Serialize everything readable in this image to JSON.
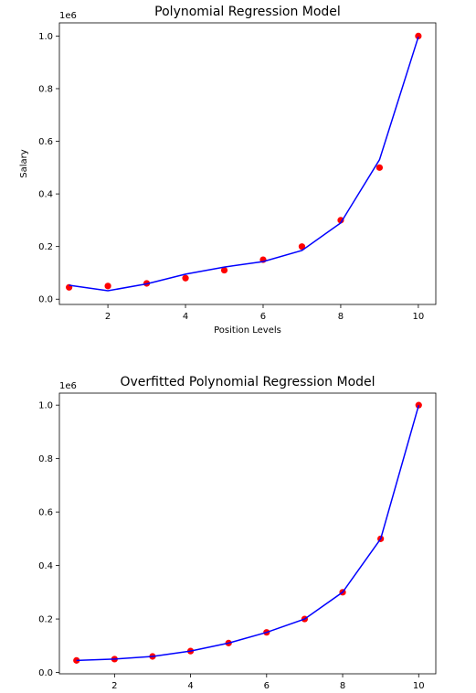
{
  "chart_data": [
    {
      "type": "scatter",
      "title": "Polynomial Regression Model",
      "xlabel": "Position Levels",
      "ylabel": "Salary",
      "offset_text": "1e6",
      "xlim": [
        0.75,
        10.45
      ],
      "ylim": [
        -20000,
        1050000
      ],
      "xticks": [
        2,
        4,
        6,
        8,
        10
      ],
      "yticks": [
        0,
        200000,
        400000,
        600000,
        800000,
        1000000
      ],
      "ytick_labels": [
        "0.0",
        "0.2",
        "0.4",
        "0.6",
        "0.8",
        "1.0"
      ],
      "grid": false,
      "series": [
        {
          "kind": "scatter",
          "color": "#ff0000",
          "x": [
            1,
            2,
            3,
            4,
            5,
            6,
            7,
            8,
            9,
            10
          ],
          "y": [
            45000,
            50000,
            60000,
            80000,
            110000,
            150000,
            200000,
            300000,
            500000,
            1000000
          ]
        },
        {
          "kind": "line",
          "color": "#0000ff",
          "x": [
            1,
            2,
            3,
            4,
            5,
            6,
            7,
            8,
            9,
            10
          ],
          "y": [
            53000,
            32000,
            58000,
            95000,
            122000,
            143000,
            185000,
            290000,
            530000,
            997000
          ]
        }
      ]
    },
    {
      "type": "scatter",
      "title": "Overfitted Polynomial Regression Model",
      "xlabel": "",
      "ylabel": "",
      "offset_text": "1e6",
      "xlim": [
        0.55,
        10.45
      ],
      "ylim": [
        -5000,
        1045000
      ],
      "xticks": [
        2,
        4,
        6,
        8,
        10
      ],
      "yticks": [
        0,
        200000,
        400000,
        600000,
        800000,
        1000000
      ],
      "ytick_labels": [
        "0.0",
        "0.2",
        "0.4",
        "0.6",
        "0.8",
        "1.0"
      ],
      "grid": false,
      "series": [
        {
          "kind": "scatter",
          "color": "#ff0000",
          "x": [
            1,
            2,
            3,
            4,
            5,
            6,
            7,
            8,
            9,
            10
          ],
          "y": [
            45000,
            50000,
            60000,
            80000,
            110000,
            150000,
            200000,
            300000,
            500000,
            1000000
          ]
        },
        {
          "kind": "line",
          "color": "#0000ff",
          "x": [
            1,
            2,
            3,
            4,
            5,
            6,
            7,
            8,
            9,
            10
          ],
          "y": [
            45000,
            50000,
            60000,
            80000,
            110000,
            150000,
            200000,
            300000,
            500000,
            1000000
          ]
        }
      ]
    }
  ]
}
